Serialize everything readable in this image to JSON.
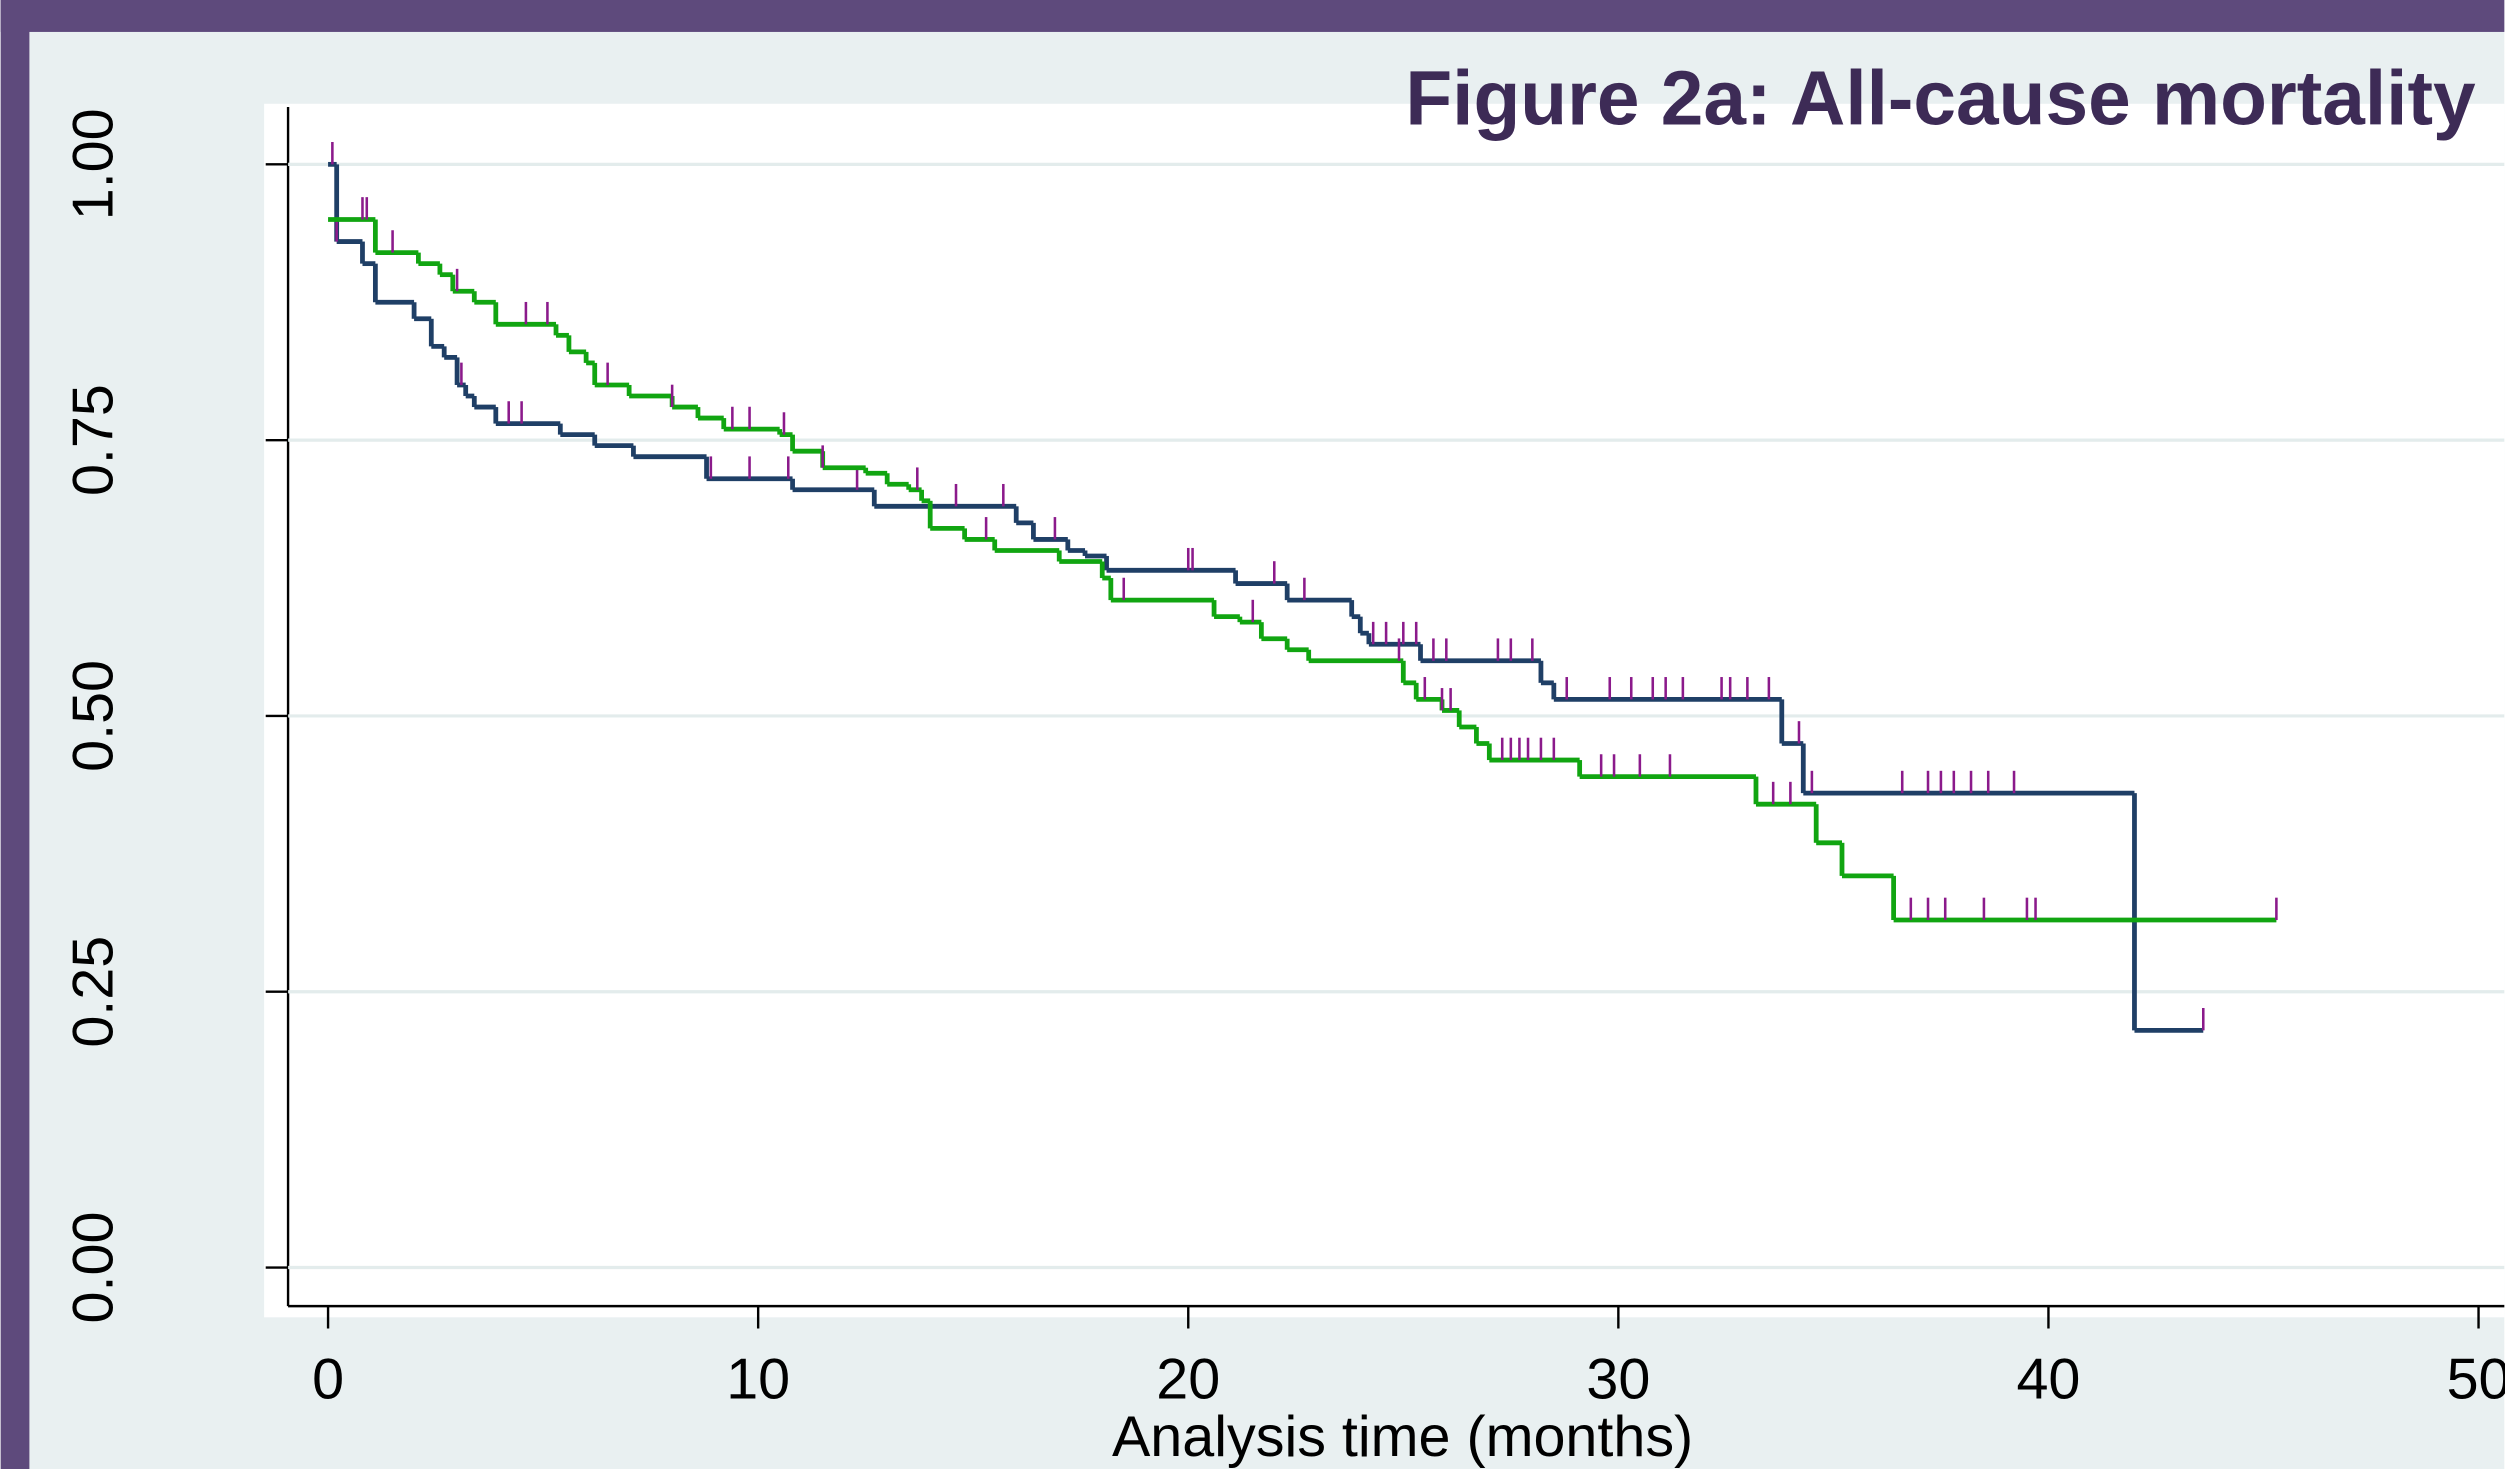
{
  "chart_data": {
    "type": "step",
    "title": "Figure 2a: All-cause mortality",
    "x_label": "Analysis time (months)",
    "xlim": [
      -0.93,
      50.6
    ],
    "xticks": [
      0,
      10,
      20,
      30,
      40,
      50
    ],
    "ylim": [
      -0.035,
      1.052
    ],
    "yticks": [
      {
        "value": 0,
        "label": "0.00"
      },
      {
        "value": 0.25,
        "label": "0.25"
      },
      {
        "value": 0.5,
        "label": "0.50"
      },
      {
        "value": 0.75,
        "label": "0.75"
      },
      {
        "value": 1,
        "label": "1.00"
      }
    ],
    "grid": true,
    "censor_color": "#8b1a8b",
    "series": [
      {
        "color": "#1f3f66",
        "x": [
          0,
          0.2,
          0.8,
          1.1,
          2,
          2.4,
          2.7,
          3,
          3.2,
          3.4,
          3.9,
          5.4,
          6.2,
          7.1,
          8.8,
          10.8,
          12.7,
          16,
          16.4,
          17.2,
          17.6,
          18.1,
          21.1,
          22.3,
          23.8,
          24,
          24.2,
          25.4,
          28.2,
          28.5,
          33.8,
          34.3,
          42
        ],
        "values": [
          1,
          0.93,
          0.91,
          0.875,
          0.86,
          0.835,
          0.825,
          0.8,
          0.79,
          0.78,
          0.765,
          0.755,
          0.745,
          0.735,
          0.715,
          0.705,
          0.69,
          0.675,
          0.66,
          0.65,
          0.645,
          0.632,
          0.62,
          0.605,
          0.59,
          0.575,
          0.565,
          0.55,
          0.53,
          0.515,
          0.475,
          0.43,
          0.215
        ],
        "censored": [
          0.1,
          0.2,
          3.1,
          4.2,
          4.5,
          8.9,
          9.8,
          10.7,
          12.3,
          14.6,
          15.7,
          16.9,
          20,
          20.1,
          22,
          22.7,
          24.3,
          24.6,
          25,
          25.3,
          25.7,
          26,
          27.2,
          27.5,
          28,
          28.8,
          29.8,
          30.3,
          30.8,
          31.1,
          31.5,
          32.4,
          32.6,
          33,
          33.5,
          34.2,
          34.5,
          36.6,
          37.2,
          37.5,
          37.8,
          38.2,
          38.6,
          39.2,
          43.6
        ]
      },
      {
        "color": "#11a511",
        "x": [
          0,
          1.1,
          2.1,
          2.6,
          2.9,
          3.4,
          3.9,
          5.3,
          5.6,
          6,
          6.2,
          7,
          8,
          8.6,
          9.2,
          10.5,
          10.8,
          11.5,
          12.5,
          13,
          13.5,
          13.8,
          14,
          14.8,
          15.5,
          17,
          18,
          18.2,
          20.6,
          21.2,
          21.7,
          22.3,
          22.8,
          25,
          25.3,
          25.9,
          26.3,
          26.7,
          27,
          29.1,
          33.2,
          34.6,
          35.2,
          36.4
        ],
        "values": [
          0.95,
          0.92,
          0.91,
          0.9,
          0.885,
          0.875,
          0.855,
          0.845,
          0.83,
          0.82,
          0.8,
          0.79,
          0.78,
          0.77,
          0.76,
          0.755,
          0.74,
          0.725,
          0.72,
          0.71,
          0.705,
          0.695,
          0.67,
          0.66,
          0.65,
          0.64,
          0.625,
          0.605,
          0.59,
          0.585,
          0.57,
          0.56,
          0.55,
          0.53,
          0.515,
          0.505,
          0.49,
          0.475,
          0.46,
          0.445,
          0.42,
          0.385,
          0.355,
          0.315
        ],
        "censored": [
          0.8,
          0.9,
          1.5,
          3,
          4.6,
          5.1,
          6.5,
          8,
          9.4,
          9.8,
          10.6,
          11.5,
          13.7,
          15.3,
          18.5,
          21.5,
          24.9,
          25.5,
          25.9,
          26.1,
          27.3,
          27.5,
          27.7,
          27.9,
          28.2,
          28.5,
          29.6,
          29.9,
          30.5,
          31.2,
          33.6,
          34,
          36.8,
          37.2,
          37.6,
          38.5,
          39.5,
          39.7,
          45.3
        ]
      }
    ]
  }
}
